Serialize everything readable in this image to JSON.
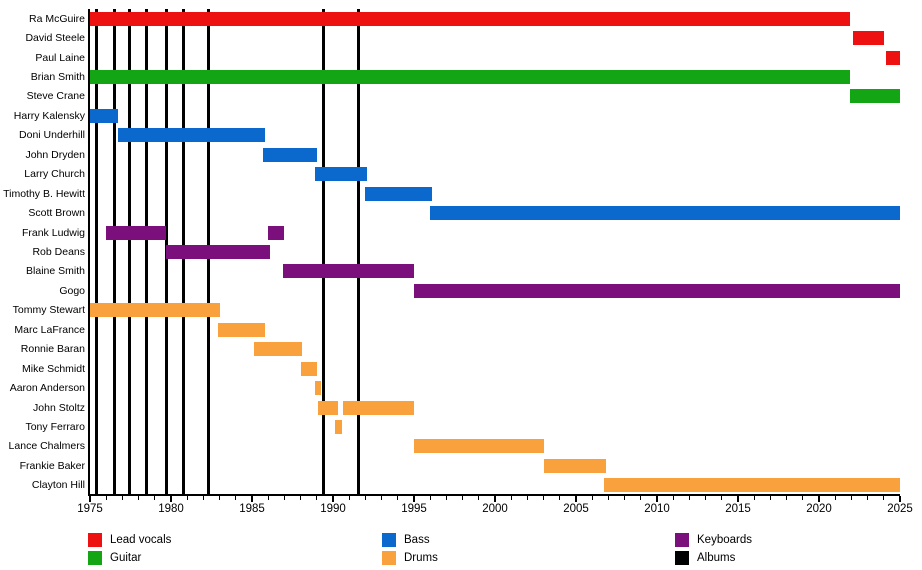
{
  "chart_data": {
    "type": "bar",
    "subtype": "membership-timeline-gantt",
    "title": "",
    "x_axis": {
      "min": 1975,
      "max": 2025,
      "major_tick_step": 5,
      "minor_tick_step": 1,
      "tick_labels": [
        "1975",
        "1980",
        "1985",
        "1990",
        "1995",
        "2000",
        "2005",
        "2010",
        "2015",
        "2020",
        "2025"
      ]
    },
    "grid": false,
    "legend_position": "bottom",
    "members": [
      {
        "name": "Ra McGuire",
        "role": "lead_vocals",
        "periods": [
          [
            1975.0,
            2021.9
          ]
        ]
      },
      {
        "name": "David Steele",
        "role": "lead_vocals",
        "periods": [
          [
            2022.1,
            2024.0
          ]
        ]
      },
      {
        "name": "Paul Laine",
        "role": "lead_vocals",
        "periods": [
          [
            2024.15,
            2025.0
          ]
        ]
      },
      {
        "name": "Brian Smith",
        "role": "guitar",
        "periods": [
          [
            1975.0,
            2021.9
          ]
        ]
      },
      {
        "name": "Steve Crane",
        "role": "guitar",
        "periods": [
          [
            2021.9,
            2025.0
          ]
        ]
      },
      {
        "name": "Harry Kalensky",
        "role": "bass",
        "periods": [
          [
            1975.0,
            1976.75
          ]
        ]
      },
      {
        "name": "Doni Underhill",
        "role": "bass",
        "periods": [
          [
            1976.75,
            1985.8
          ]
        ]
      },
      {
        "name": "John Dryden",
        "role": "bass",
        "periods": [
          [
            1985.7,
            1989.0
          ]
        ]
      },
      {
        "name": "Larry Church",
        "role": "bass",
        "periods": [
          [
            1988.9,
            1992.1
          ]
        ]
      },
      {
        "name": "Timothy B. Hewitt",
        "role": "bass",
        "periods": [
          [
            1992.0,
            1996.1
          ]
        ]
      },
      {
        "name": "Scott Brown",
        "role": "bass",
        "periods": [
          [
            1996.0,
            2025.0
          ]
        ]
      },
      {
        "name": "Frank Ludwig",
        "role": "keyboards",
        "periods": [
          [
            1976.0,
            1979.7
          ],
          [
            1986.0,
            1987.0
          ]
        ]
      },
      {
        "name": "Rob Deans",
        "role": "keyboards",
        "periods": [
          [
            1979.7,
            1986.1
          ]
        ]
      },
      {
        "name": "Blaine Smith",
        "role": "keyboards",
        "periods": [
          [
            1986.9,
            1995.0
          ]
        ]
      },
      {
        "name": "Gogo",
        "role": "keyboards",
        "periods": [
          [
            1995.0,
            2025.0
          ]
        ]
      },
      {
        "name": "Tommy Stewart",
        "role": "drums",
        "periods": [
          [
            1975.0,
            1983.0
          ]
        ]
      },
      {
        "name": "Marc LaFrance",
        "role": "drums",
        "periods": [
          [
            1982.9,
            1985.8
          ]
        ]
      },
      {
        "name": "Ronnie Baran",
        "role": "drums",
        "periods": [
          [
            1985.1,
            1988.1
          ]
        ]
      },
      {
        "name": "Mike Schmidt",
        "role": "drums",
        "periods": [
          [
            1988.0,
            1989.0
          ]
        ]
      },
      {
        "name": "Aaron Anderson",
        "role": "drums",
        "periods": [
          [
            1988.9,
            1989.25
          ]
        ]
      },
      {
        "name": "John Stoltz",
        "role": "drums",
        "periods": [
          [
            1989.1,
            1990.3
          ],
          [
            1990.6,
            1995.0
          ]
        ]
      },
      {
        "name": "Tony Ferraro",
        "role": "drums",
        "periods": [
          [
            1990.15,
            1990.55
          ]
        ]
      },
      {
        "name": "Lance Chalmers",
        "role": "drums",
        "periods": [
          [
            1995.0,
            2003.0
          ]
        ]
      },
      {
        "name": "Frankie Baker",
        "role": "drums",
        "periods": [
          [
            2003.05,
            2006.85
          ]
        ]
      },
      {
        "name": "Clayton Hill",
        "role": "drums",
        "periods": [
          [
            2006.75,
            2025.0
          ]
        ]
      }
    ],
    "album_years": [
      1975.4,
      1976.5,
      1977.45,
      1978.5,
      1979.7,
      1980.75,
      1982.3,
      1989.4,
      1991.55
    ],
    "legend": {
      "columns": [
        [
          {
            "label": "Lead vocals",
            "key": "lead_vocals"
          },
          {
            "label": "Guitar",
            "key": "guitar"
          }
        ],
        [
          {
            "label": "Bass",
            "key": "bass"
          },
          {
            "label": "Drums",
            "key": "drums"
          }
        ],
        [
          {
            "label": "Keyboards",
            "key": "keyboards"
          },
          {
            "label": "Albums",
            "key": "albums"
          }
        ]
      ]
    }
  },
  "colors": {
    "lead_vocals": "#ED1111",
    "guitar": "#14A514",
    "bass": "#0B68CC",
    "drums": "#F9A13C",
    "keyboards": "#7B0F7B",
    "albums": "#000000",
    "axis": "#000000"
  }
}
